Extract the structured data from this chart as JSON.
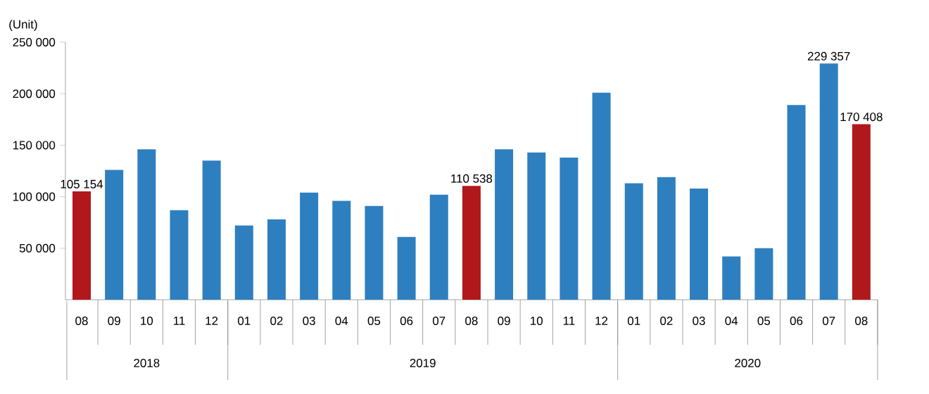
{
  "chart_data": {
    "type": "bar",
    "ylabel": "(Unit)",
    "categories": [
      "08",
      "09",
      "10",
      "11",
      "12",
      "01",
      "02",
      "03",
      "04",
      "05",
      "06",
      "07",
      "08",
      "09",
      "10",
      "11",
      "12",
      "01",
      "02",
      "03",
      "04",
      "05",
      "06",
      "07",
      "08"
    ],
    "values": [
      105154,
      126000,
      146000,
      87000,
      135000,
      72000,
      78000,
      104000,
      96000,
      91000,
      61000,
      102000,
      110538,
      146000,
      143000,
      138000,
      201000,
      113000,
      119000,
      108000,
      42000,
      50000,
      189000,
      229357,
      170408
    ],
    "colors": [
      "#b0181c",
      "#2e7fc0",
      "#2e7fc0",
      "#2e7fc0",
      "#2e7fc0",
      "#2e7fc0",
      "#2e7fc0",
      "#2e7fc0",
      "#2e7fc0",
      "#2e7fc0",
      "#2e7fc0",
      "#2e7fc0",
      "#b0181c",
      "#2e7fc0",
      "#2e7fc0",
      "#2e7fc0",
      "#2e7fc0",
      "#2e7fc0",
      "#2e7fc0",
      "#2e7fc0",
      "#2e7fc0",
      "#2e7fc0",
      "#2e7fc0",
      "#2e7fc0",
      "#b0181c"
    ],
    "value_labels": [
      "105 154",
      null,
      null,
      null,
      null,
      null,
      null,
      null,
      null,
      null,
      null,
      null,
      "110 538",
      null,
      null,
      null,
      null,
      null,
      null,
      null,
      null,
      null,
      null,
      "229 357",
      "170 408"
    ],
    "annotations": [
      "2018",
      "2019",
      "2020"
    ],
    "ylim": [
      0,
      250000
    ],
    "yticks": [
      {
        "value": 50000,
        "label": "50 000"
      },
      {
        "value": 100000,
        "label": "100 000"
      },
      {
        "value": 150000,
        "label": "150 000"
      },
      {
        "value": 200000,
        "label": "200 000"
      },
      {
        "value": 250000,
        "label": "250 000"
      }
    ],
    "grid": false
  }
}
